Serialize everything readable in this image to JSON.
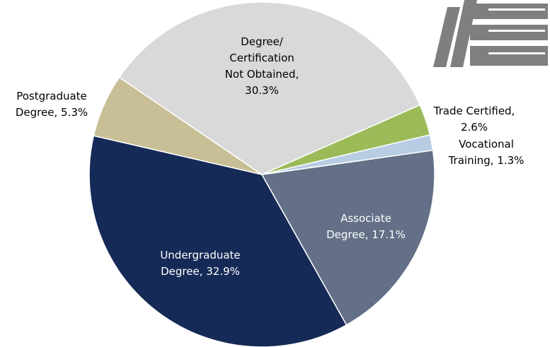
{
  "chart_data": {
    "type": "pie",
    "categories": [
      "Trade Certified",
      "Vocational\nTraining",
      "Associate\nDegree",
      "Undergraduate\nDegree",
      "Postgraduate\nDegree",
      "Degree/\nCertification\nNot Obtained"
    ],
    "values": [
      2.6,
      1.3,
      17.1,
      32.9,
      5.3,
      30.3
    ],
    "value_labels": [
      "2.6%",
      "1.3%",
      "17.1%",
      "32.9%",
      "5.3%",
      "30.3%"
    ],
    "label_separator": ", ",
    "colors": [
      "#9bbb59",
      "#b8cce4",
      "#637087",
      "#152a56",
      "#c9bf96",
      "#d9d9d9"
    ],
    "start_angle": 66.2
  }
}
